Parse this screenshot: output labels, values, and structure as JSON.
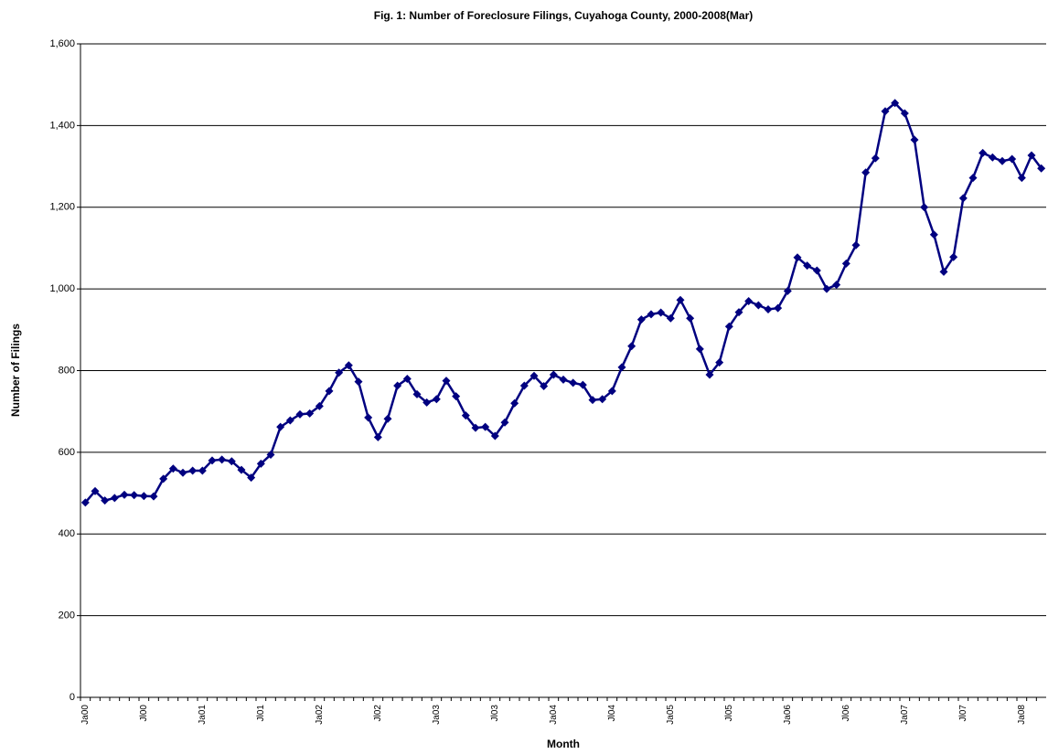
{
  "chart_data": {
    "type": "line",
    "title": "Fig. 1: Number of Foreclosure Filings, Cuyahoga County, 2000-2008(Mar)",
    "x_label": "Month",
    "y_label": "Number of Filings",
    "categories": [
      "Ja00",
      null,
      null,
      null,
      null,
      null,
      "Jl00",
      null,
      null,
      null,
      null,
      null,
      "Ja01",
      null,
      null,
      null,
      null,
      null,
      "Jl01",
      null,
      null,
      null,
      null,
      null,
      "Ja02",
      null,
      null,
      null,
      null,
      null,
      "Jl02",
      null,
      null,
      null,
      null,
      null,
      "Ja03",
      null,
      null,
      null,
      null,
      null,
      "Jl03",
      null,
      null,
      null,
      null,
      null,
      "Ja04",
      null,
      null,
      null,
      null,
      null,
      "Jl04",
      null,
      null,
      null,
      null,
      null,
      "Ja05",
      null,
      null,
      null,
      null,
      null,
      "Jl05",
      null,
      null,
      null,
      null,
      null,
      "Ja06",
      null,
      null,
      null,
      null,
      null,
      "Jl06",
      null,
      null,
      null,
      null,
      null,
      "Ja07",
      null,
      null,
      null,
      null,
      null,
      "Jl07",
      null,
      null,
      null,
      null,
      null,
      "Ja08",
      null,
      null
    ],
    "values": [
      477,
      505,
      482,
      488,
      496,
      495,
      493,
      492,
      535,
      560,
      550,
      555,
      555,
      580,
      582,
      578,
      557,
      538,
      572,
      594,
      662,
      678,
      693,
      695,
      713,
      750,
      795,
      813,
      773,
      685,
      637,
      682,
      763,
      780,
      742,
      722,
      730,
      775,
      737,
      690,
      660,
      662,
      640,
      673,
      720,
      763,
      787,
      762,
      790,
      778,
      770,
      765,
      728,
      730,
      750,
      808,
      860,
      925,
      938,
      942,
      928,
      973,
      928,
      853,
      790,
      820,
      908,
      943,
      970,
      960,
      950,
      953,
      995,
      1077,
      1057,
      1045,
      1000,
      1010,
      1062,
      1107,
      1285,
      1320,
      1435,
      1455,
      1430,
      1365,
      1200,
      1133,
      1042,
      1078,
      1222,
      1272,
      1333,
      1322,
      1313,
      1318,
      1272,
      1327,
      1295
    ],
    "color": "#000080",
    "ylim": [
      0,
      1600
    ],
    "yticks": [
      0,
      200,
      400,
      600,
      800,
      {
        "value": 1000,
        "label": "1,000"
      },
      {
        "value": 1200,
        "label": "1,200"
      },
      {
        "value": 1400,
        "label": "1,400"
      },
      {
        "value": 1600,
        "label": "1,600"
      }
    ],
    "grid": true
  }
}
